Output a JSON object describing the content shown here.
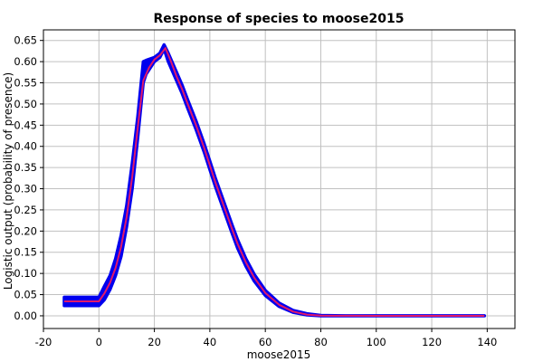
{
  "chart_data": {
    "type": "line",
    "title": "Response of species to moose2015",
    "xlabel": "moose2015",
    "ylabel": "Logistic output (probability of presence)",
    "xlim": [
      -20,
      150
    ],
    "ylim": [
      -0.03,
      0.675
    ],
    "xticks": [
      -20,
      0,
      20,
      40,
      60,
      80,
      100,
      120,
      140
    ],
    "xtick_labels": [
      "-20",
      "0",
      "20",
      "40",
      "60",
      "80",
      "100",
      "120",
      "140"
    ],
    "yticks": [
      0.0,
      0.05,
      0.1,
      0.15,
      0.2,
      0.25,
      0.3,
      0.35,
      0.4,
      0.45,
      0.5,
      0.55,
      0.6,
      0.65
    ],
    "ytick_labels": [
      "0.00",
      "0.05",
      "0.10",
      "0.15",
      "0.20",
      "0.25",
      "0.30",
      "0.35",
      "0.40",
      "0.45",
      "0.50",
      "0.55",
      "0.60",
      "0.65"
    ],
    "grid": true,
    "series": [
      {
        "color": "#0000ee",
        "role": "band",
        "x": [
          -12.5,
          0,
          2,
          4,
          6,
          8,
          10,
          12,
          14,
          16,
          17,
          20,
          22,
          23.5,
          25,
          28,
          30,
          32,
          35,
          38,
          40,
          42,
          45,
          48,
          50,
          53,
          56,
          60,
          65,
          70,
          75,
          80,
          85,
          90,
          100,
          120,
          139
        ],
        "upper": [
          0.044,
          0.044,
          0.07,
          0.095,
          0.135,
          0.19,
          0.26,
          0.36,
          0.47,
          0.6,
          0.603,
          0.61,
          0.62,
          0.64,
          0.62,
          0.575,
          0.545,
          0.51,
          0.46,
          0.405,
          0.365,
          0.325,
          0.27,
          0.215,
          0.18,
          0.135,
          0.098,
          0.06,
          0.03,
          0.013,
          0.005,
          0.001,
          0.0004,
          0.0002,
          0.0001,
          0.0001,
          0.0001
        ],
        "lower": [
          0.024,
          0.024,
          0.038,
          0.062,
          0.095,
          0.14,
          0.21,
          0.3,
          0.42,
          0.55,
          0.57,
          0.6,
          0.61,
          0.63,
          0.6,
          0.555,
          0.525,
          0.49,
          0.44,
          0.385,
          0.345,
          0.305,
          0.25,
          0.195,
          0.16,
          0.117,
          0.082,
          0.048,
          0.022,
          0.008,
          0.002,
          0.0,
          0.0,
          0.0,
          0.0,
          0.0,
          0.0
        ]
      },
      {
        "color": "#e0186a",
        "role": "mean",
        "x": [
          -12.5,
          0,
          2,
          4,
          6,
          8,
          10,
          12,
          14,
          16,
          18,
          20,
          22,
          24,
          26,
          28,
          30,
          32,
          35,
          38,
          40,
          42,
          45,
          48,
          50,
          53,
          56,
          60,
          65,
          70,
          75,
          80,
          85,
          90,
          100,
          120,
          139
        ],
        "y": [
          0.034,
          0.034,
          0.053,
          0.078,
          0.113,
          0.163,
          0.233,
          0.328,
          0.444,
          0.555,
          0.585,
          0.605,
          0.615,
          0.632,
          0.6,
          0.565,
          0.535,
          0.5,
          0.45,
          0.395,
          0.355,
          0.315,
          0.26,
          0.205,
          0.17,
          0.126,
          0.09,
          0.054,
          0.026,
          0.01,
          0.003,
          0.0005,
          0.0002,
          0.0001,
          0.0,
          0.0,
          0.0
        ]
      }
    ]
  }
}
